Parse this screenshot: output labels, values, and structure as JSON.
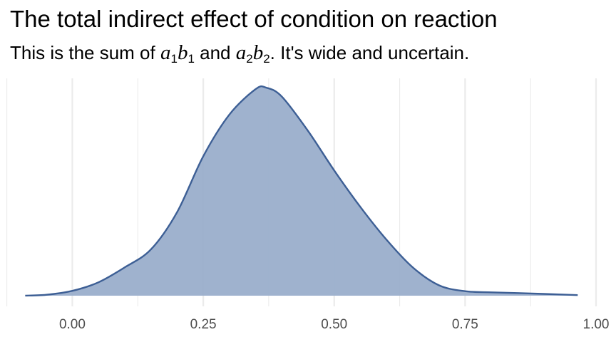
{
  "title": "The total indirect effect of condition on reaction",
  "subtitle": {
    "prefix": "This is the sum of ",
    "mid": " and ",
    "suffix": ". It's wide and uncertain."
  },
  "chart_data": {
    "type": "area",
    "title": "The total indirect effect of condition on reaction",
    "xlabel": "",
    "ylabel": "",
    "xlim": [
      -0.1,
      1.0
    ],
    "x_ticks": [
      0.0,
      0.25,
      0.5,
      0.75,
      1.0
    ],
    "x_tick_labels": [
      "0.00",
      "0.25",
      "0.50",
      "0.75",
      "1.00"
    ],
    "grid": "vertical",
    "fill_color": "#9aaecb",
    "line_color": "#3d5f95",
    "series": [
      {
        "x": [
          -0.09,
          -0.05,
          0.0,
          0.05,
          0.1,
          0.15,
          0.2,
          0.25,
          0.3,
          0.35,
          0.37,
          0.4,
          0.45,
          0.5,
          0.55,
          0.6,
          0.65,
          0.7,
          0.75,
          0.8,
          0.85,
          0.9,
          0.965
        ],
        "y": [
          0.001,
          0.012,
          0.065,
          0.18,
          0.38,
          0.62,
          1.12,
          1.87,
          2.43,
          2.77,
          2.79,
          2.67,
          2.21,
          1.68,
          1.19,
          0.75,
          0.38,
          0.14,
          0.06,
          0.045,
          0.035,
          0.024,
          0.008
        ]
      }
    ]
  }
}
